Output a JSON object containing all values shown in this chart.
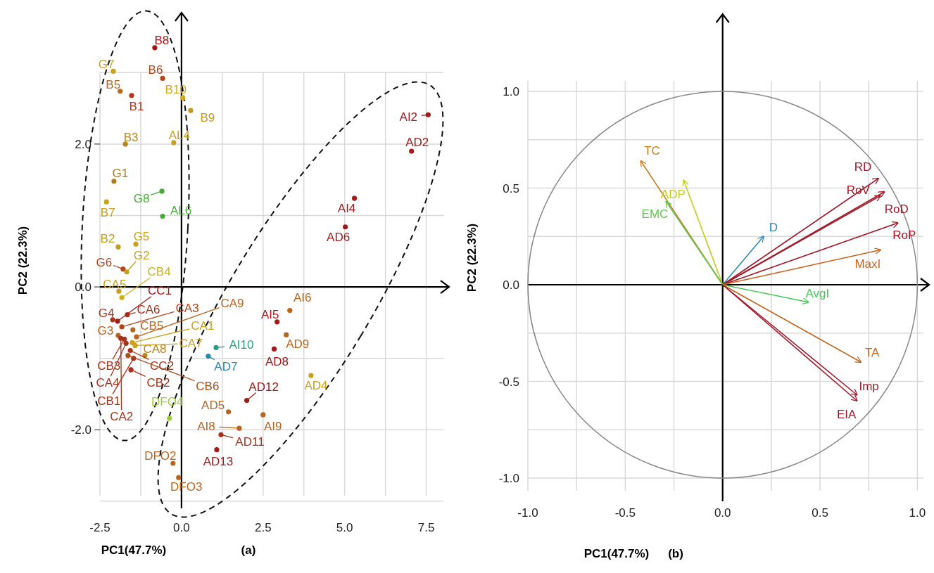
{
  "chart_data": [
    {
      "type": "scatter",
      "xlabel": "PC1(47.7%)",
      "ylabel": "PC2 (22.3%)",
      "xlim": [
        -2.5,
        8.2
      ],
      "ylim": [
        -3.1,
        3.84
      ],
      "xticks": [
        {
          "value": -2.5,
          "label": "-2.5"
        },
        {
          "value": -1.25,
          "label": null
        },
        {
          "value": 0,
          "label": "0.0"
        },
        {
          "value": 1.25,
          "label": null
        },
        {
          "value": 2.5,
          "label": "2.5"
        },
        {
          "value": 3.75,
          "label": null
        },
        {
          "value": 5,
          "label": "5.0"
        },
        {
          "value": 6.25,
          "label": null
        },
        {
          "value": 7.5,
          "label": "7.5"
        }
      ],
      "yticks": [
        {
          "value": -3,
          "label": null
        },
        {
          "value": -2,
          "label": "-2.0"
        },
        {
          "value": -1,
          "label": null
        },
        {
          "value": 0,
          "label": "0.0"
        },
        {
          "value": 1,
          "label": null
        },
        {
          "value": 2,
          "label": "2.0"
        },
        {
          "value": 3,
          "label": null
        }
      ],
      "grid": true,
      "marker": "circle",
      "x": [
        -0.82,
        -2.09,
        -0.58,
        -1.88,
        -1.53,
        0.04,
        0.28,
        -1.72,
        -0.24,
        -2.07,
        -0.6,
        -2.3,
        -0.58,
        -1.94,
        -1.4,
        -1.79,
        -1.68,
        -1.92,
        -1.83,
        -2.11,
        -1.96,
        -1.66,
        -1.83,
        -1.38,
        -1.94,
        -1.49,
        -1.51,
        -1.42,
        -1.12,
        -1.75,
        -1.57,
        -1.7,
        -1.55,
        -1.64,
        -1.47,
        -1.86,
        -0.37,
        -0.26,
        -0.09,
        1.06,
        0.82,
        1.44,
        2.0,
        1.77,
        2.5,
        1.21,
        1.08,
        2.93,
        2.84,
        7.56,
        7.05,
        5.3,
        5.02,
        3.32,
        3.21,
        3.97
      ],
      "values": [
        3.35,
        3.02,
        2.92,
        2.74,
        2.68,
        2.65,
        2.47,
        2.0,
        2.02,
        1.48,
        1.34,
        1.19,
        0.99,
        0.56,
        0.6,
        0.25,
        0.21,
        -0.06,
        -0.15,
        -0.46,
        -0.48,
        -0.39,
        -0.56,
        -0.7,
        -0.68,
        -0.6,
        -0.78,
        -0.82,
        -0.96,
        -0.73,
        -0.89,
        -0.79,
        -1.16,
        -0.96,
        -1.0,
        -0.72,
        -1.84,
        -2.47,
        -2.67,
        -0.85,
        -0.97,
        -1.75,
        -1.59,
        -1.98,
        -1.79,
        -2.07,
        -2.28,
        -0.49,
        -0.87,
        2.41,
        1.9,
        1.24,
        0.84,
        -0.33,
        -0.67,
        -1.24
      ],
      "colors": [
        "#a31515",
        "#c8a21a",
        "#b5451b",
        "#b86a1e",
        "#b5341b",
        "#d4aa1c",
        "#c49a1c",
        "#b8861e",
        "#c8a21a",
        "#b07a1c",
        "#4aa83c",
        "#c8a21a",
        "#4aa83c",
        "#c49a1c",
        "#c8a21a",
        "#b5451b",
        "#c8a21a",
        "#c8a21a",
        "#d0b020",
        "#a8331a",
        "#a31a1a",
        "#a8331a",
        "#b5451b",
        "#b8661e",
        "#b8661e",
        "#b8661e",
        "#c8a21a",
        "#c8a21a",
        "#b8861e",
        "#a8331a",
        "#a8331a",
        "#a8331a",
        "#a8331a",
        "#a8501e",
        "#a8331a",
        "#a8331a",
        "#9acd32",
        "#b8661e",
        "#b8661e",
        "#2a9d7f",
        "#2e86ab",
        "#b8661e",
        "#a31a1a",
        "#b8661e",
        "#b8661e",
        "#a8331a",
        "#a31a1a",
        "#a31a1a",
        "#a31a1a",
        "#a31a1a",
        "#a31a1a",
        "#a31a1a",
        "#a31a1a",
        "#b8661e",
        "#b8661e",
        "#c8a21a"
      ],
      "annotations": [
        {
          "text": "B8",
          "x": -0.82,
          "y": 3.35
        },
        {
          "text": "G7",
          "x": -2.09,
          "y": 3.02
        },
        {
          "text": "B6",
          "x": -0.58,
          "y": 2.92
        },
        {
          "text": "B5",
          "x": -1.88,
          "y": 2.74
        },
        {
          "text": "B1",
          "x": -1.53,
          "y": 2.68
        },
        {
          "text": "B10",
          "x": 0.04,
          "y": 2.65
        },
        {
          "text": "B9",
          "x": 0.28,
          "y": 2.47
        },
        {
          "text": "B3",
          "x": -1.72,
          "y": 2.0
        },
        {
          "text": "AL4",
          "x": -0.24,
          "y": 2.02
        },
        {
          "text": "G1",
          "x": -2.07,
          "y": 1.48
        },
        {
          "text": "G8",
          "x": -0.6,
          "y": 1.34
        },
        {
          "text": "B7",
          "x": -2.3,
          "y": 1.19
        },
        {
          "text": "AL6",
          "x": -0.58,
          "y": 0.99
        },
        {
          "text": "B2",
          "x": -1.94,
          "y": 0.56
        },
        {
          "text": "G5",
          "x": -1.4,
          "y": 0.6
        },
        {
          "text": "G6",
          "x": -1.79,
          "y": 0.25
        },
        {
          "text": "G2",
          "x": -1.68,
          "y": 0.21
        },
        {
          "text": "CA5",
          "x": -1.92,
          "y": -0.06
        },
        {
          "text": "CB4",
          "x": -1.83,
          "y": -0.15
        },
        {
          "text": "G4",
          "x": -2.11,
          "y": -0.46
        },
        {
          "text": "CC1",
          "x": -1.96,
          "y": -0.48
        },
        {
          "text": "CA6",
          "x": -1.66,
          "y": -0.39
        },
        {
          "text": "CA3",
          "x": -1.83,
          "y": -0.56
        },
        {
          "text": "CA9",
          "x": -1.38,
          "y": -0.7
        },
        {
          "text": "G3",
          "x": -1.94,
          "y": -0.68
        },
        {
          "text": "CB5",
          "x": -1.49,
          "y": -0.6
        },
        {
          "text": "CA1",
          "x": -1.51,
          "y": -0.78
        },
        {
          "text": "CA7",
          "x": -1.42,
          "y": -0.82
        },
        {
          "text": "CA8",
          "x": -1.12,
          "y": -0.96
        },
        {
          "text": "CB3",
          "x": -1.75,
          "y": -0.73
        },
        {
          "text": "CC2",
          "x": -1.57,
          "y": -0.89
        },
        {
          "text": "CA4",
          "x": -1.7,
          "y": -0.79
        },
        {
          "text": "CB2",
          "x": -1.55,
          "y": -1.16
        },
        {
          "text": "CB6",
          "x": -1.64,
          "y": -0.96
        },
        {
          "text": "CB1",
          "x": -1.47,
          "y": -1.0
        },
        {
          "text": "CA2",
          "x": -1.86,
          "y": -0.72
        },
        {
          "text": "DFO4",
          "x": -0.37,
          "y": -1.84
        },
        {
          "text": "DFO2",
          "x": -0.26,
          "y": -2.47
        },
        {
          "text": "DFO3",
          "x": -0.09,
          "y": -2.67
        },
        {
          "text": "AI10",
          "x": 1.06,
          "y": -0.85
        },
        {
          "text": "AD7",
          "x": 0.82,
          "y": -0.97
        },
        {
          "text": "AD5",
          "x": 1.44,
          "y": -1.75
        },
        {
          "text": "AD12",
          "x": 2.0,
          "y": -1.59
        },
        {
          "text": "AI8",
          "x": 1.77,
          "y": -1.98
        },
        {
          "text": "AI9",
          "x": 2.5,
          "y": -1.79
        },
        {
          "text": "AD11",
          "x": 1.21,
          "y": -2.07
        },
        {
          "text": "AD13",
          "x": 1.08,
          "y": -2.28
        },
        {
          "text": "AI5",
          "x": 2.93,
          "y": -0.49
        },
        {
          "text": "AD8",
          "x": 2.84,
          "y": -0.87
        },
        {
          "text": "AI2",
          "x": 7.56,
          "y": 2.41
        },
        {
          "text": "AD2",
          "x": 7.05,
          "y": 1.9
        },
        {
          "text": "AI4",
          "x": 5.3,
          "y": 1.24
        },
        {
          "text": "AD6",
          "x": 5.02,
          "y": 0.84
        },
        {
          "text": "AI6",
          "x": 3.32,
          "y": -0.33
        },
        {
          "text": "AD9",
          "x": 3.21,
          "y": -0.67
        },
        {
          "text": "AD4",
          "x": 3.97,
          "y": -1.24
        },
        "(a)"
      ]
    },
    {
      "type": "line",
      "xlabel": "PC1(47.7%)",
      "ylabel": "PC2 (22.3%)",
      "xlim": [
        -1,
        1.06
      ],
      "ylim": [
        -1.12,
        1.4
      ],
      "xticks": [
        {
          "value": -1,
          "label": "-1.0"
        },
        {
          "value": -0.75,
          "label": null
        },
        {
          "value": -0.5,
          "label": "-0.5"
        },
        {
          "value": -0.25,
          "label": null
        },
        {
          "value": 0,
          "label": "0.0"
        },
        {
          "value": 0.25,
          "label": null
        },
        {
          "value": 0.5,
          "label": "0.5"
        },
        {
          "value": 0.75,
          "label": null
        },
        {
          "value": 1,
          "label": "1.0"
        }
      ],
      "yticks": [
        {
          "value": -1,
          "label": "-1.0"
        },
        {
          "value": -0.75,
          "label": null
        },
        {
          "value": -0.5,
          "label": "-0.5"
        },
        {
          "value": -0.25,
          "label": null
        },
        {
          "value": 0,
          "label": "0.0"
        },
        {
          "value": 0.25,
          "label": null
        },
        {
          "value": 0.5,
          "label": "0.5"
        },
        {
          "value": 0.75,
          "label": null
        },
        {
          "value": 1,
          "label": "1.0"
        }
      ],
      "grid": true,
      "series": [
        {
          "name": "TC",
          "color": "#c87a1e",
          "x": [
            0,
            -0.42
          ],
          "values": [
            0,
            0.64
          ]
        },
        {
          "name": "ADP",
          "color": "#c0cc1e",
          "x": [
            0,
            -0.2
          ],
          "values": [
            0,
            0.54
          ]
        },
        {
          "name": "EMC",
          "color": "#5cc84a",
          "x": [
            0,
            -0.29
          ],
          "values": [
            0,
            0.43
          ]
        },
        {
          "name": "D",
          "color": "#2e8ab8",
          "x": [
            0,
            0.21
          ],
          "values": [
            0,
            0.25
          ]
        },
        {
          "name": "RD",
          "color": "#a01a2a",
          "x": [
            0,
            0.8
          ],
          "values": [
            0,
            0.55
          ]
        },
        {
          "name": "RoV",
          "color": "#a01a2a",
          "x": [
            0,
            0.83
          ],
          "values": [
            0,
            0.48
          ]
        },
        {
          "name": "RoD",
          "color": "#a01a2a",
          "x": [
            0,
            0.81
          ],
          "values": [
            0,
            0.46
          ]
        },
        {
          "name": "RoP",
          "color": "#a01a2a",
          "x": [
            0,
            0.9
          ],
          "values": [
            0,
            0.32
          ]
        },
        {
          "name": "MaxI",
          "color": "#c8641e",
          "x": [
            0,
            0.81
          ],
          "values": [
            0,
            0.18
          ]
        },
        {
          "name": "AvgI",
          "color": "#4ac85a",
          "x": [
            0,
            0.44
          ],
          "values": [
            0,
            -0.09
          ]
        },
        {
          "name": "TA",
          "color": "#c0641e",
          "x": [
            0,
            0.71
          ],
          "values": [
            0,
            -0.4
          ]
        },
        {
          "name": "Imp",
          "color": "#a01a2a",
          "x": [
            0,
            0.69
          ],
          "values": [
            0,
            -0.57
          ]
        },
        {
          "name": "EIA",
          "color": "#a01a2a",
          "x": [
            0,
            0.69
          ],
          "values": [
            0,
            -0.6
          ]
        }
      ],
      "annotations": [
        "(b)"
      ]
    }
  ]
}
